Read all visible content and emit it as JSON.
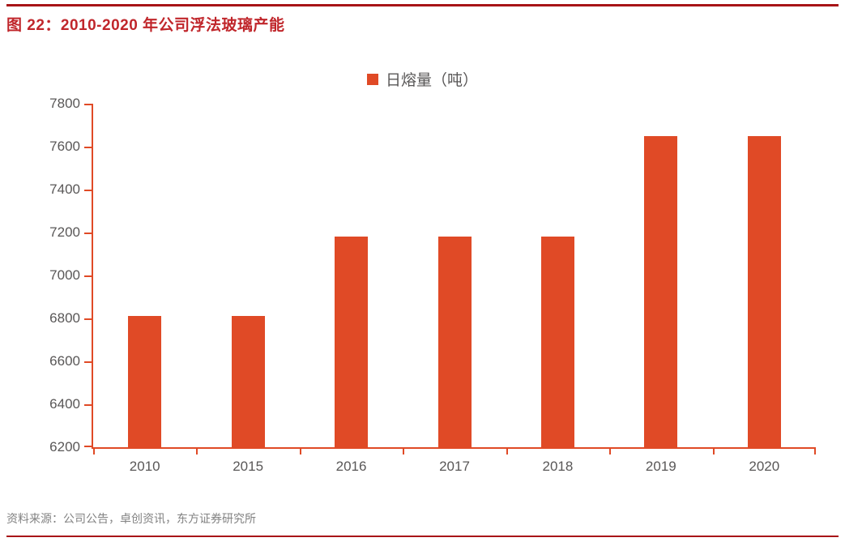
{
  "page": {
    "title": "图 22：2010-2020 年公司浮法玻璃产能",
    "source": "资料来源：公司公告，卓创资讯，东方证券研究所"
  },
  "colors": {
    "accent_red": "#A81417",
    "title_red": "#C0262B",
    "bar_orange": "#E04A26",
    "axis_orange": "#E04A26",
    "label_gray": "#595757",
    "source_gray": "#828282"
  },
  "chart_data": {
    "type": "bar",
    "title": "图 22：2010-2020 年公司浮法玻璃产能",
    "categories": [
      "2010",
      "2015",
      "2016",
      "2017",
      "2018",
      "2019",
      "2020"
    ],
    "series": [
      {
        "name": "日熔量（吨）",
        "values": [
          6810,
          6810,
          7180,
          7180,
          7180,
          7650,
          7650
        ]
      }
    ],
    "xlabel": "",
    "ylabel": "",
    "ylim": [
      6200,
      7800
    ],
    "yticks": [
      6200,
      6400,
      6600,
      6800,
      7000,
      7200,
      7400,
      7600,
      7800
    ],
    "grid": false,
    "legend_position": "top-center",
    "legend": [
      "日熔量（吨）"
    ]
  }
}
